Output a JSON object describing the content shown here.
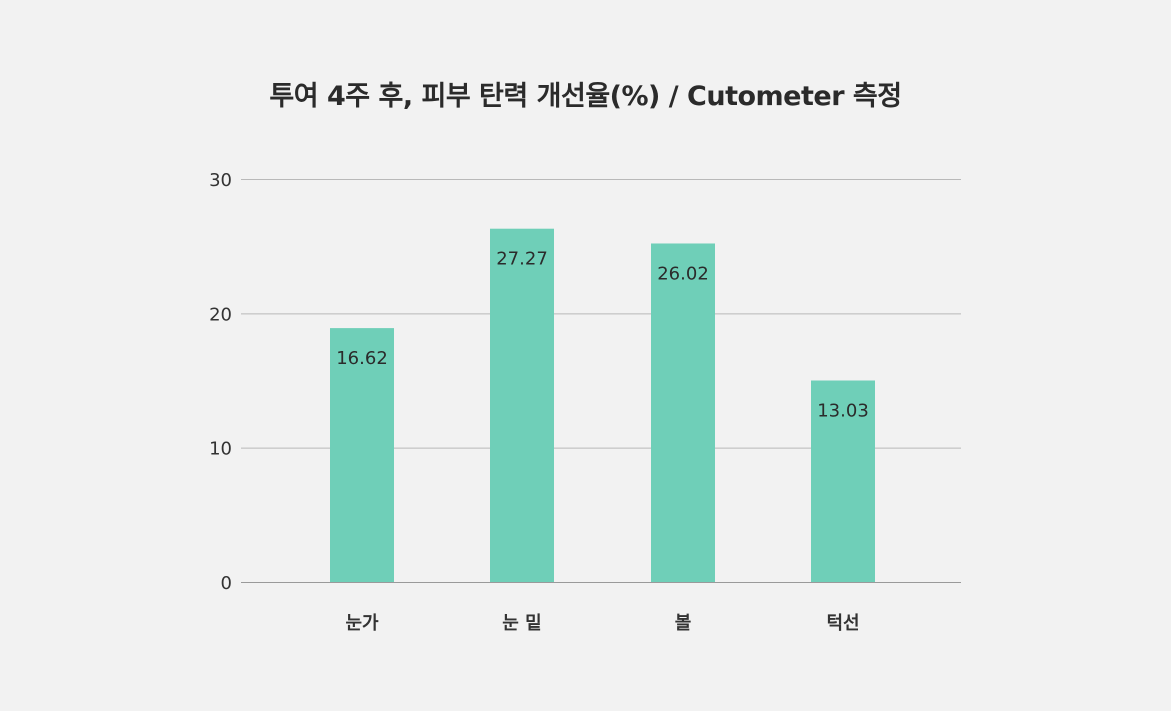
{
  "chart_data": {
    "type": "bar",
    "title": "투여 4주 후, 피부 탄력 개선율(%) / Cutometer 측정",
    "categories": [
      "눈가",
      "눈 밑",
      "볼",
      "턱선"
    ],
    "values": [
      16.62,
      27.27,
      26.02,
      13.03
    ],
    "bar_heights_read": [
      18.9,
      26.3,
      25.2,
      15.0
    ],
    "data_labels": [
      "16.62",
      "27.27",
      "26.02",
      "13.03"
    ],
    "y_ticks": [
      "0",
      "10",
      "20",
      "30"
    ],
    "ylim": [
      0,
      30
    ],
    "xlabel": "",
    "ylabel": "",
    "grid": true,
    "legend": "none",
    "bar_color": "#6fcfb8"
  }
}
